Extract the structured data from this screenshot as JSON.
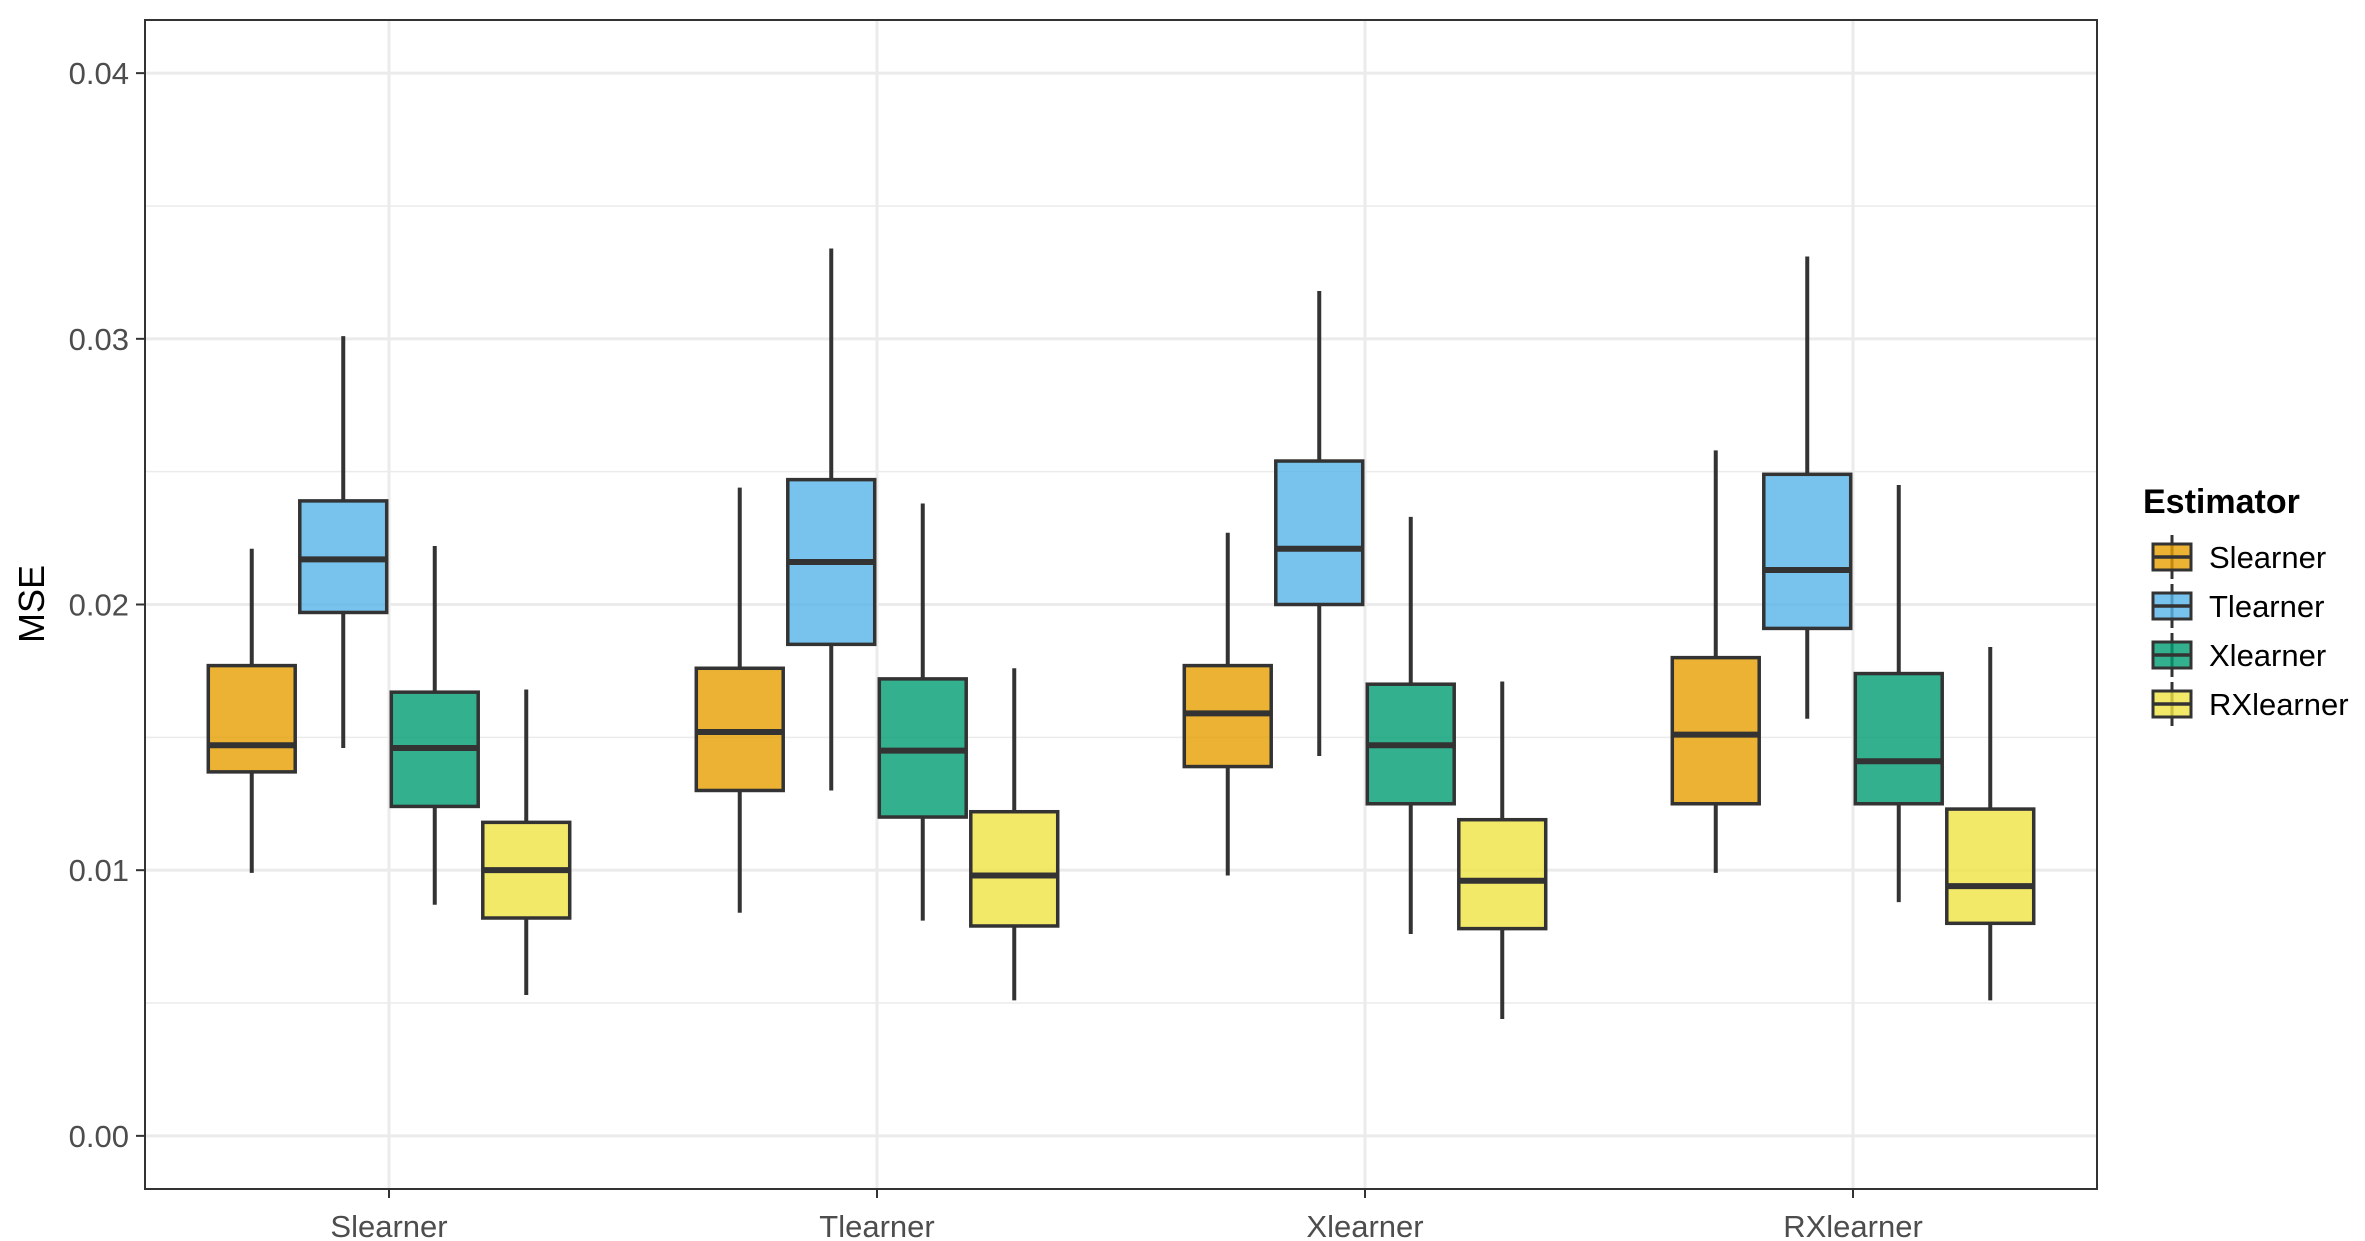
{
  "chart_data": {
    "type": "boxplot",
    "title": "",
    "xlabel": "",
    "ylabel": "MSE",
    "ylim": [
      -0.002,
      0.042
    ],
    "yticks": [
      0.0,
      0.01,
      0.02,
      0.03,
      0.04
    ],
    "ytick_labels": [
      "0.00",
      "0.01",
      "0.02",
      "0.03",
      "0.04"
    ],
    "categories": [
      "Slearner",
      "Tlearner",
      "Xlearner",
      "RXlearner"
    ],
    "legend": {
      "title": "Estimator",
      "placement": "right"
    },
    "series": [
      {
        "name": "Slearner",
        "color": "#E69F00",
        "boxes": [
          {
            "whisker_low": 0.0099,
            "q1": 0.0137,
            "median": 0.0147,
            "q3": 0.0177,
            "whisker_high": 0.0221
          },
          {
            "whisker_low": 0.0084,
            "q1": 0.013,
            "median": 0.0152,
            "q3": 0.0176,
            "whisker_high": 0.0244
          },
          {
            "whisker_low": 0.0098,
            "q1": 0.0139,
            "median": 0.0159,
            "q3": 0.0177,
            "whisker_high": 0.0227
          },
          {
            "whisker_low": 0.0099,
            "q1": 0.0125,
            "median": 0.0151,
            "q3": 0.018,
            "whisker_high": 0.0258
          }
        ]
      },
      {
        "name": "Tlearner",
        "color": "#56B4E9",
        "boxes": [
          {
            "whisker_low": 0.0146,
            "q1": 0.0197,
            "median": 0.0217,
            "q3": 0.0239,
            "whisker_high": 0.0301
          },
          {
            "whisker_low": 0.013,
            "q1": 0.0185,
            "median": 0.0216,
            "q3": 0.0247,
            "whisker_high": 0.0334
          },
          {
            "whisker_low": 0.0143,
            "q1": 0.02,
            "median": 0.0221,
            "q3": 0.0254,
            "whisker_high": 0.0318
          },
          {
            "whisker_low": 0.0157,
            "q1": 0.0191,
            "median": 0.0213,
            "q3": 0.0249,
            "whisker_high": 0.0331
          }
        ]
      },
      {
        "name": "Xlearner",
        "color": "#009E73",
        "boxes": [
          {
            "whisker_low": 0.0087,
            "q1": 0.0124,
            "median": 0.0146,
            "q3": 0.0167,
            "whisker_high": 0.0222
          },
          {
            "whisker_low": 0.0081,
            "q1": 0.012,
            "median": 0.0145,
            "q3": 0.0172,
            "whisker_high": 0.0238
          },
          {
            "whisker_low": 0.0076,
            "q1": 0.0125,
            "median": 0.0147,
            "q3": 0.017,
            "whisker_high": 0.0233
          },
          {
            "whisker_low": 0.0088,
            "q1": 0.0125,
            "median": 0.0141,
            "q3": 0.0174,
            "whisker_high": 0.0245
          }
        ]
      },
      {
        "name": "RXlearner",
        "color": "#F0E442",
        "boxes": [
          {
            "whisker_low": 0.0053,
            "q1": 0.0082,
            "median": 0.01,
            "q3": 0.0118,
            "whisker_high": 0.0168
          },
          {
            "whisker_low": 0.0051,
            "q1": 0.0079,
            "median": 0.0098,
            "q3": 0.0122,
            "whisker_high": 0.0176
          },
          {
            "whisker_low": 0.0044,
            "q1": 0.0078,
            "median": 0.0096,
            "q3": 0.0119,
            "whisker_high": 0.0171
          },
          {
            "whisker_low": 0.0051,
            "q1": 0.008,
            "median": 0.0094,
            "q3": 0.0123,
            "whisker_high": 0.0184
          }
        ]
      }
    ]
  }
}
